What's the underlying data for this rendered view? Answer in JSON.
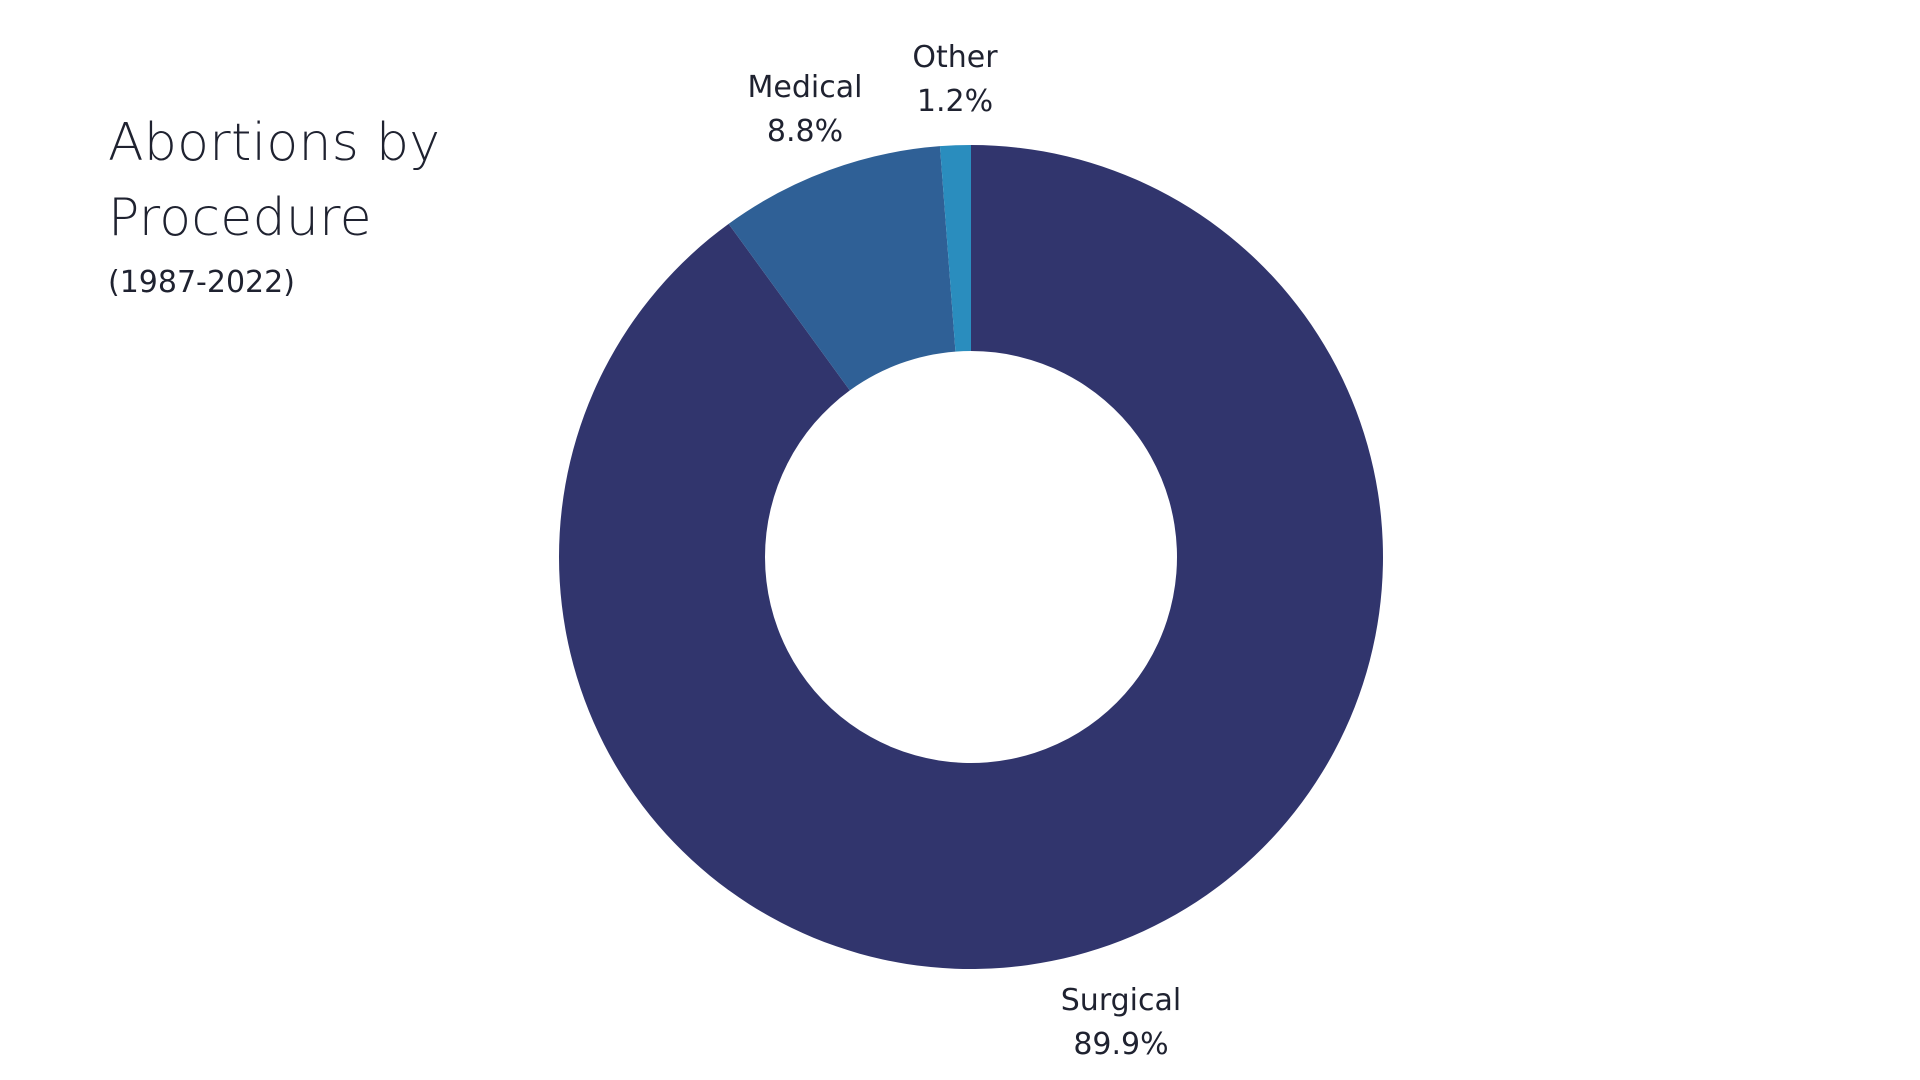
{
  "chart_data": {
    "type": "pie",
    "title_lines": [
      "Abortions by",
      "Procedure"
    ],
    "subtitle": "(1987-2022)",
    "donut": true,
    "categories": [
      "Surgical",
      "Medical",
      "Other"
    ],
    "values": [
      89.9,
      8.8,
      1.2
    ],
    "value_labels": [
      "89.9%",
      "8.8%",
      "1.2%"
    ],
    "colors": [
      "#31356D",
      "#2F6096",
      "#2A8DBE"
    ],
    "start_angle": "12 o'clock",
    "direction": "clockwise",
    "legend": "none; labels placed outside slices"
  }
}
